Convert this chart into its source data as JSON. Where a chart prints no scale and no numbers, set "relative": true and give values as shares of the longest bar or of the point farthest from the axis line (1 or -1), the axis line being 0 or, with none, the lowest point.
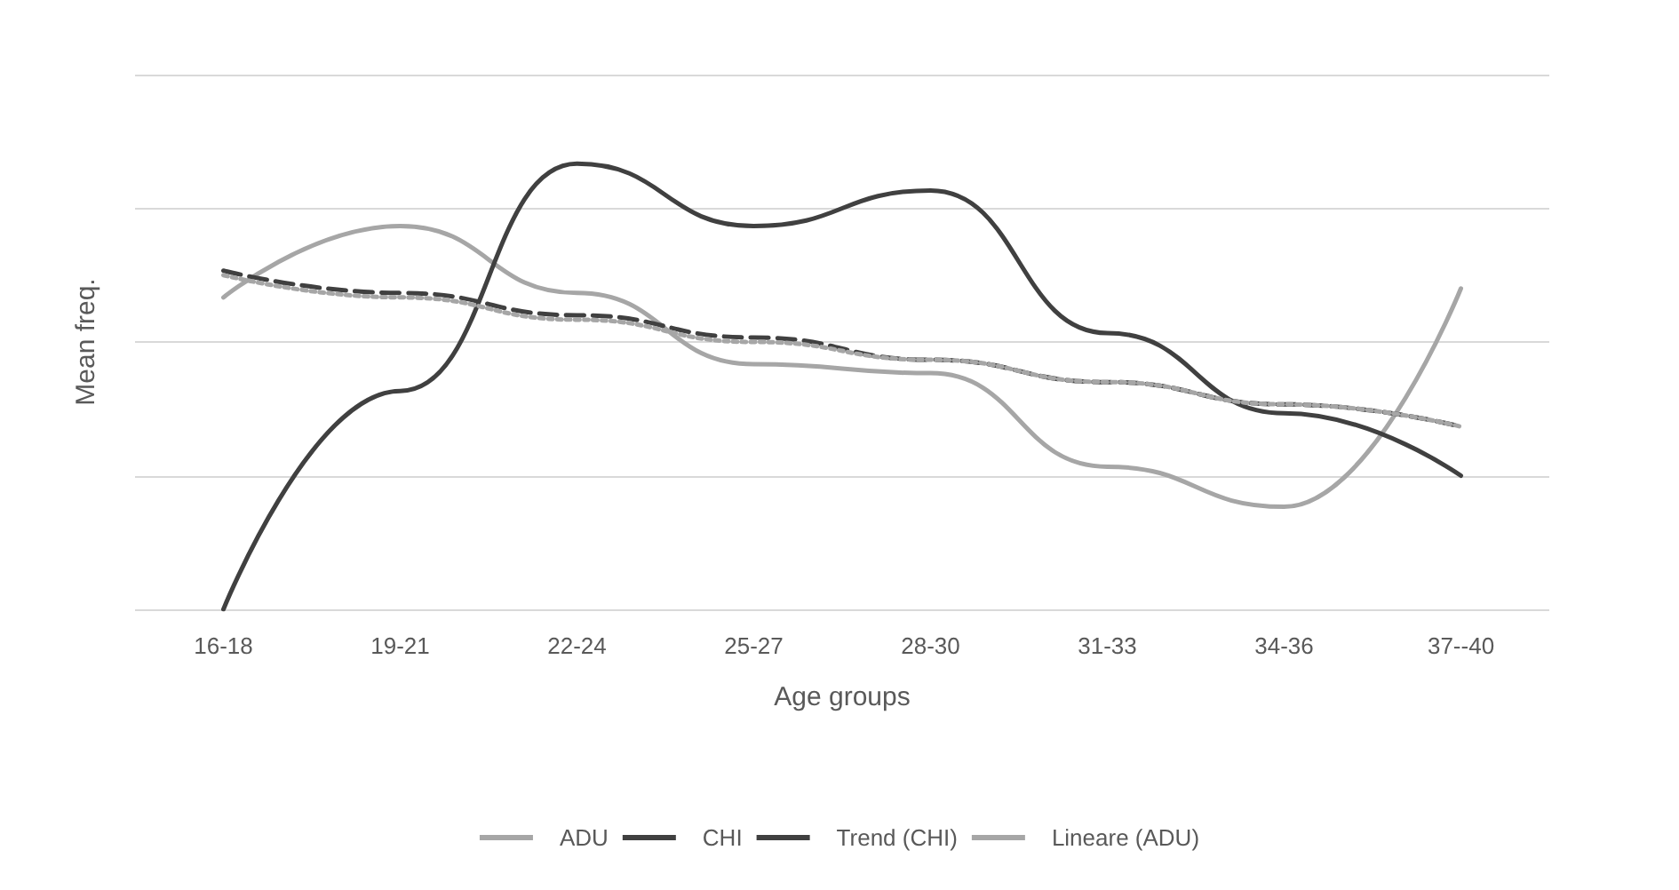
{
  "chart_data": {
    "type": "line",
    "relative": true,
    "xlabel": "Age groups",
    "ylabel": "Mean freq.",
    "categories": [
      "16-18",
      "19-21",
      "22-24",
      "25-27",
      "28-30",
      "31-33",
      "34-36",
      "37--40"
    ],
    "series": [
      {
        "name": "ADU",
        "color": "#a6a6a6",
        "values": [
          0.7,
          0.86,
          0.71,
          0.55,
          0.53,
          0.32,
          0.23,
          0.72
        ]
      },
      {
        "name": "CHI",
        "color": "#404040",
        "values": [
          0,
          0.49,
          1,
          0.86,
          0.94,
          0.62,
          0.44,
          0.3
        ]
      },
      {
        "name": "Trend (CHI)",
        "color": "#404040",
        "line_style": "dashed",
        "values": [
          0.76,
          0.71,
          0.66,
          0.61,
          0.56,
          0.51,
          0.46,
          0.41
        ]
      },
      {
        "name": "Lineare (ADU)",
        "color": "#a6a6a6",
        "line_style": "dotted",
        "values": [
          0.75,
          0.7,
          0.65,
          0.6,
          0.56,
          0.51,
          0.46,
          0.41
        ]
      }
    ],
    "grid": "y",
    "legend": "bottom",
    "marker": "none",
    "line_style": "solid"
  }
}
